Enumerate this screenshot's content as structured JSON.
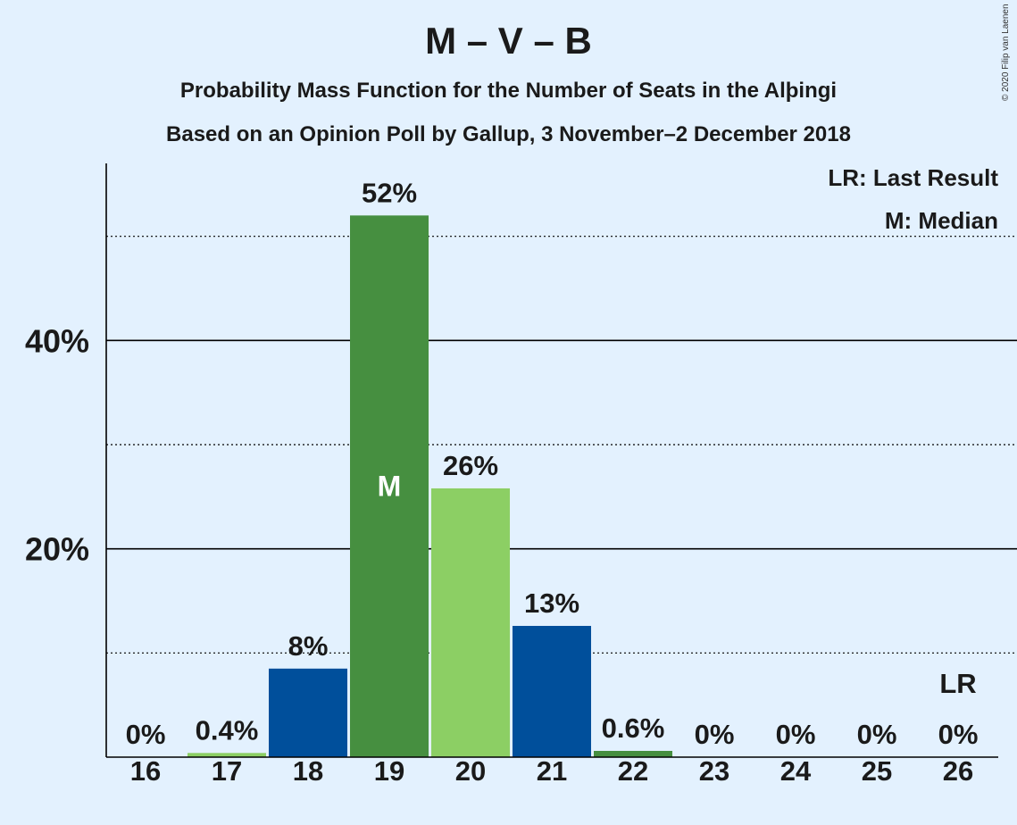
{
  "chart_data": {
    "type": "bar",
    "title": "M – V – B",
    "subtitle": "Probability Mass Function for the Number of Seats in the Alþingi",
    "subtitle2": "Based on an Opinion Poll by Gallup, 3 November–2 December 2018",
    "copyright": "© 2020 Filip van Laenen",
    "categories": [
      "16",
      "17",
      "18",
      "19",
      "20",
      "21",
      "22",
      "23",
      "24",
      "25",
      "26"
    ],
    "values": [
      0,
      0.4,
      8.5,
      52,
      25.8,
      12.6,
      0.6,
      0,
      0,
      0,
      0
    ],
    "data_labels": [
      "0%",
      "0.4%",
      "8%",
      "52%",
      "26%",
      "13%",
      "0.6%",
      "0%",
      "0%",
      "0%",
      "0%"
    ],
    "bar_colors": [
      "#8ccf64",
      "#8ccf64",
      "#004f9b",
      "#468f40",
      "#8ccf64",
      "#004f9b",
      "#468f40",
      "#8ccf64",
      "#8ccf64",
      "#8ccf64",
      "#8ccf64"
    ],
    "ylim": [
      0,
      57
    ],
    "yticks": [
      {
        "value": 10,
        "label": "",
        "style": "dotted"
      },
      {
        "value": 20,
        "label": "20%",
        "style": "solid"
      },
      {
        "value": 30,
        "label": "",
        "style": "dotted"
      },
      {
        "value": 40,
        "label": "40%",
        "style": "solid"
      },
      {
        "value": 50,
        "label": "",
        "style": "dotted"
      }
    ],
    "median": {
      "category": "19",
      "label": "M"
    },
    "last_result": {
      "category": "26",
      "label": "LR"
    },
    "legend": {
      "position": "top-right",
      "entries": [
        "LR: Last Result",
        "M: Median"
      ]
    }
  }
}
